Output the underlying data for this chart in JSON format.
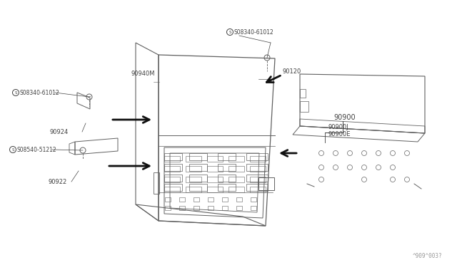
{
  "bg_color": "#ffffff",
  "line_color": "#606060",
  "text_color": "#404040",
  "arrow_color": "#101010",
  "fig_width": 6.4,
  "fig_height": 3.72,
  "watermark": "^909^003?",
  "labels": {
    "s08340_top": "S08340-61012",
    "s08340_left": "S08340-61012",
    "s08540": "S08540-51212",
    "p90940M": "90940M",
    "p90120": "90120",
    "p90924": "90924",
    "p90922": "90922",
    "p90900": "90900",
    "p90900J": "90900J",
    "p90900E": "90900E"
  }
}
